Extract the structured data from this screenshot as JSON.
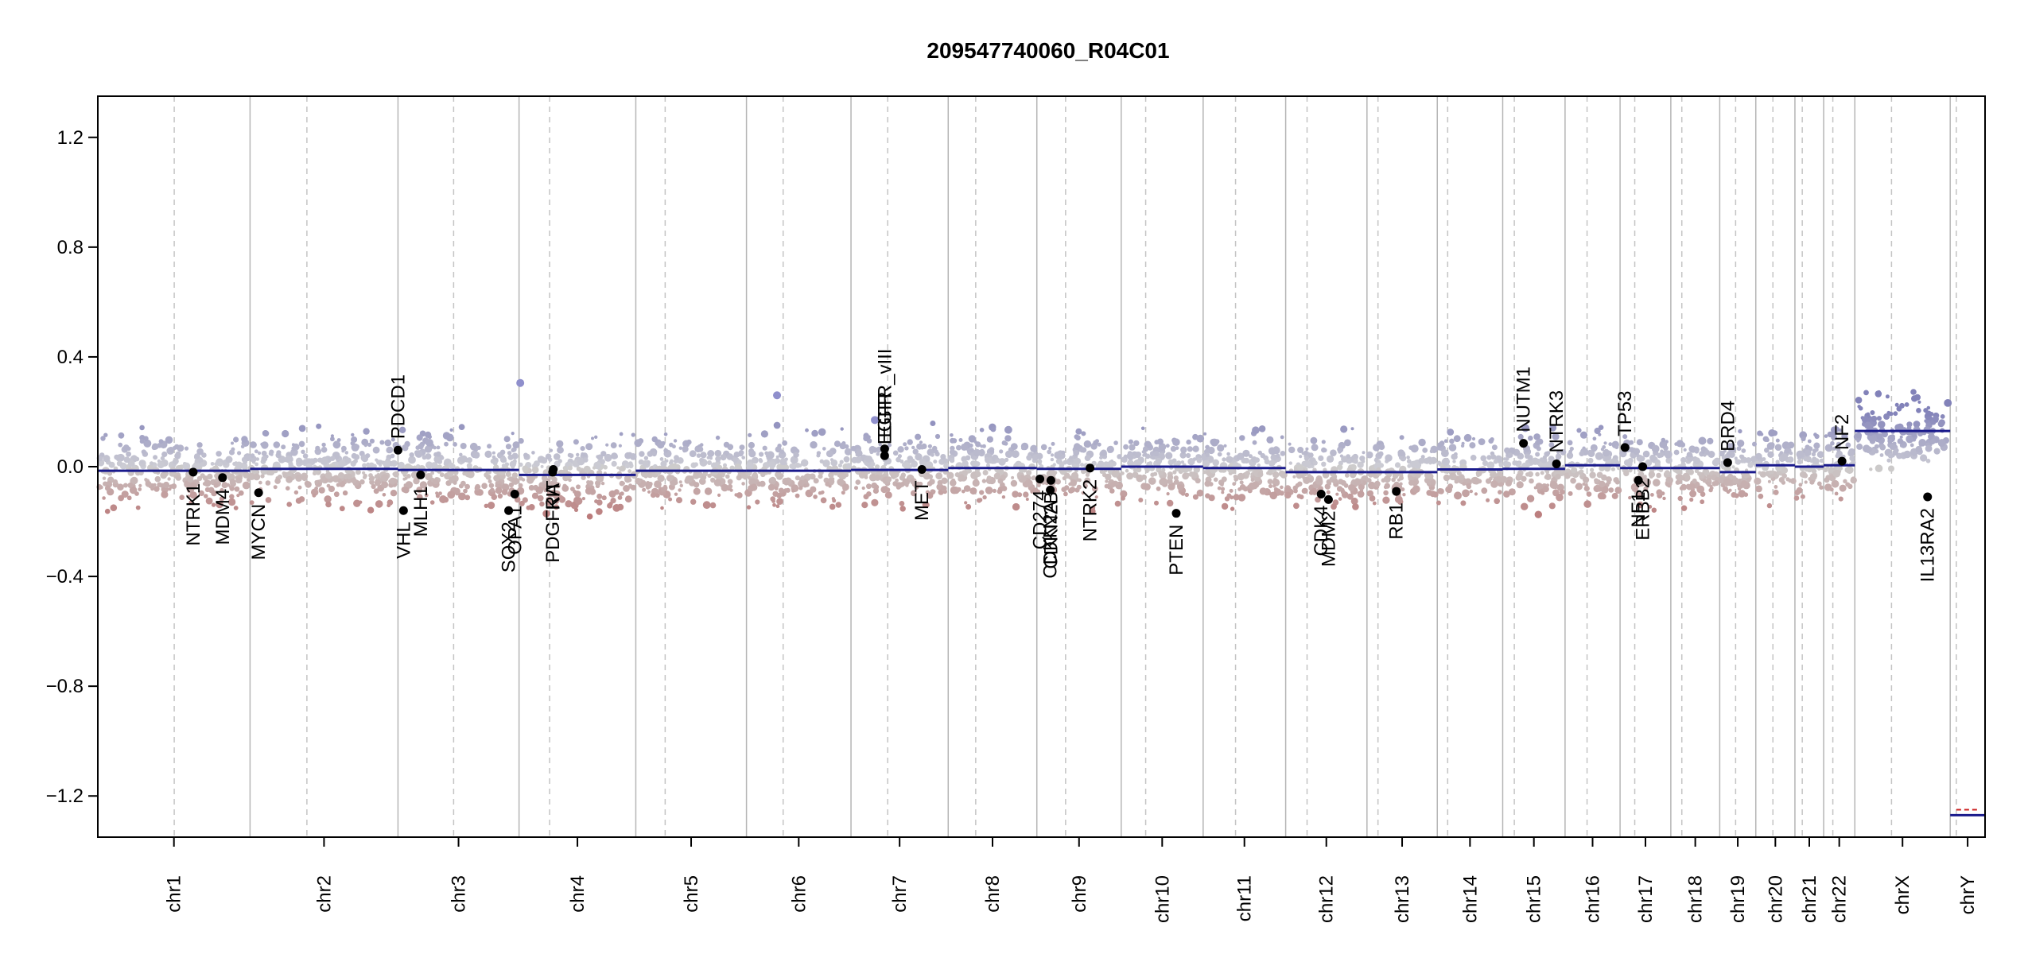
{
  "chart_data": {
    "type": "scatter",
    "title": "209547740060_R04C01",
    "xlabel": "",
    "ylabel": "",
    "ylim": [
      -1.35,
      1.35
    ],
    "yticks": [
      -1.2,
      -0.8,
      -0.4,
      0.0,
      0.4,
      0.8,
      1.2
    ],
    "ytick_labels": [
      "−1.2",
      "−0.8",
      "−0.4",
      "0.0",
      "0.4",
      "0.8",
      "1.2"
    ],
    "chromosomes": [
      {
        "name": "chr1",
        "start": 0.0,
        "end": 249.0
      },
      {
        "name": "chr2",
        "start": 249.0,
        "end": 491.0
      },
      {
        "name": "chr3",
        "start": 491.0,
        "end": 689.0
      },
      {
        "name": "chr4",
        "start": 689.0,
        "end": 880.0
      },
      {
        "name": "chr5",
        "start": 880.0,
        "end": 1061.0
      },
      {
        "name": "chr6",
        "start": 1061.0,
        "end": 1232.0
      },
      {
        "name": "chr7",
        "start": 1232.0,
        "end": 1391.0
      },
      {
        "name": "chr8",
        "start": 1391.0,
        "end": 1536.0
      },
      {
        "name": "chr9",
        "start": 1536.0,
        "end": 1674.0
      },
      {
        "name": "chr10",
        "start": 1674.0,
        "end": 1808.0
      },
      {
        "name": "chr11",
        "start": 1808.0,
        "end": 1943.0
      },
      {
        "name": "chr12",
        "start": 1943.0,
        "end": 2076.0
      },
      {
        "name": "chr13",
        "start": 2076.0,
        "end": 2191.0
      },
      {
        "name": "chr14",
        "start": 2191.0,
        "end": 2298.0
      },
      {
        "name": "chr15",
        "start": 2298.0,
        "end": 2400.0
      },
      {
        "name": "chr16",
        "start": 2400.0,
        "end": 2490.0
      },
      {
        "name": "chr17",
        "start": 2490.0,
        "end": 2573.0
      },
      {
        "name": "chr18",
        "start": 2573.0,
        "end": 2653.0
      },
      {
        "name": "chr19",
        "start": 2653.0,
        "end": 2712.0
      },
      {
        "name": "chr20",
        "start": 2712.0,
        "end": 2776.0
      },
      {
        "name": "chr21",
        "start": 2776.0,
        "end": 2823.0
      },
      {
        "name": "chr22",
        "start": 2823.0,
        "end": 2874.0
      },
      {
        "name": "chrX",
        "start": 2874.0,
        "end": 3030.0
      },
      {
        "name": "chrY",
        "start": 3030.0,
        "end": 3087.0
      }
    ],
    "centromeres": [
      125,
      93,
      91,
      50,
      48,
      60,
      60,
      45,
      47,
      40,
      53,
      35,
      18,
      17,
      19,
      36,
      24,
      18,
      26,
      28,
      12,
      15,
      60,
      10
    ],
    "segments": [
      {
        "x0": 0,
        "x1": 249,
        "y": -0.015
      },
      {
        "x0": 249,
        "x1": 491,
        "y": -0.008
      },
      {
        "x0": 491,
        "x1": 689,
        "y": -0.012
      },
      {
        "x0": 689,
        "x1": 880,
        "y": -0.03
      },
      {
        "x0": 880,
        "x1": 1061,
        "y": -0.015
      },
      {
        "x0": 1061,
        "x1": 1232,
        "y": -0.015
      },
      {
        "x0": 1232,
        "x1": 1391,
        "y": -0.012
      },
      {
        "x0": 1391,
        "x1": 1536,
        "y": -0.005
      },
      {
        "x0": 1536,
        "x1": 1674,
        "y": -0.008
      },
      {
        "x0": 1674,
        "x1": 1808,
        "y": 0.0
      },
      {
        "x0": 1808,
        "x1": 1943,
        "y": -0.005
      },
      {
        "x0": 1943,
        "x1": 2076,
        "y": -0.02
      },
      {
        "x0": 2076,
        "x1": 2191,
        "y": -0.02
      },
      {
        "x0": 2191,
        "x1": 2298,
        "y": -0.01
      },
      {
        "x0": 2298,
        "x1": 2400,
        "y": -0.008
      },
      {
        "x0": 2400,
        "x1": 2490,
        "y": 0.005
      },
      {
        "x0": 2490,
        "x1": 2573,
        "y": -0.005
      },
      {
        "x0": 2573,
        "x1": 2653,
        "y": -0.005
      },
      {
        "x0": 2653,
        "x1": 2712,
        "y": -0.02
      },
      {
        "x0": 2712,
        "x1": 2776,
        "y": 0.005
      },
      {
        "x0": 2776,
        "x1": 2823,
        "y": 0.0
      },
      {
        "x0": 2823,
        "x1": 2874,
        "y": 0.005
      },
      {
        "x0": 2874,
        "x1": 3030,
        "y": 0.13
      },
      {
        "x0": 3030,
        "x1": 3087,
        "y": -1.27
      }
    ],
    "genes": [
      {
        "name": "NTRK1",
        "x": 156,
        "y": -0.02
      },
      {
        "name": "MDM4",
        "x": 204,
        "y": -0.04
      },
      {
        "name": "MYCN",
        "x": 263,
        "y": -0.095
      },
      {
        "name": "PDCD1",
        "x": 491,
        "y": 0.06
      },
      {
        "name": "VHL",
        "x": 500,
        "y": -0.16
      },
      {
        "name": "MLH1",
        "x": 528,
        "y": -0.03
      },
      {
        "name": "SOX2",
        "x": 672,
        "y": -0.16
      },
      {
        "name": "OPA1",
        "x": 682,
        "y": -0.1
      },
      {
        "name": "PDGFRA",
        "x": 744,
        "y": -0.02
      },
      {
        "name": "KIT",
        "x": 745,
        "y": -0.01
      },
      {
        "name": "EGFR_vIII",
        "x": 1287,
        "y": 0.065
      },
      {
        "name": "EGFR",
        "x": 1287,
        "y": 0.04
      },
      {
        "name": "MET",
        "x": 1348,
        "y": -0.01
      },
      {
        "name": "CD274",
        "x": 1541,
        "y": -0.045
      },
      {
        "name": "CDKN2A",
        "x": 1558,
        "y": -0.085
      },
      {
        "name": "CDKN2B",
        "x": 1559,
        "y": -0.05
      },
      {
        "name": "NTRK2",
        "x": 1623,
        "y": -0.005
      },
      {
        "name": "PTEN",
        "x": 1764,
        "y": -0.17
      },
      {
        "name": "CDK4",
        "x": 2001,
        "y": -0.1
      },
      {
        "name": "MDM2",
        "x": 2013,
        "y": -0.12
      },
      {
        "name": "RB1",
        "x": 2124,
        "y": -0.09
      },
      {
        "name": "NUTM1",
        "x": 2332,
        "y": 0.085
      },
      {
        "name": "NTRK3",
        "x": 2386,
        "y": 0.01
      },
      {
        "name": "TP53",
        "x": 2498,
        "y": 0.07
      },
      {
        "name": "NF1",
        "x": 2520,
        "y": -0.05
      },
      {
        "name": "ERBB2",
        "x": 2527,
        "y": 0.0
      },
      {
        "name": "BRD4",
        "x": 2666,
        "y": 0.015
      },
      {
        "name": "NF2",
        "x": 2853,
        "y": 0.02
      },
      {
        "name": "IL13RA2",
        "x": 2993,
        "y": -0.11
      }
    ]
  }
}
